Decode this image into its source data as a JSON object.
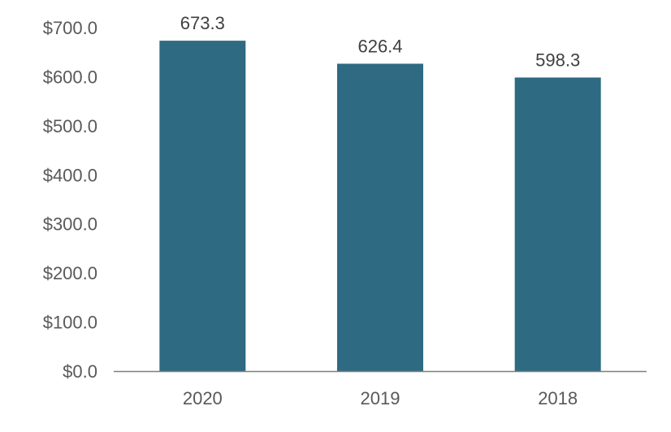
{
  "chart_data": {
    "type": "bar",
    "categories": [
      "2020",
      "2019",
      "2018"
    ],
    "values": [
      673.3,
      626.4,
      598.3
    ],
    "data_labels": [
      "673.3",
      "626.4",
      "598.3"
    ],
    "y_ticks": [
      {
        "value": 0,
        "label": "$0.0"
      },
      {
        "value": 100,
        "label": "$100.0"
      },
      {
        "value": 200,
        "label": "$200.0"
      },
      {
        "value": 300,
        "label": "$300.0"
      },
      {
        "value": 400,
        "label": "$400.0"
      },
      {
        "value": 500,
        "label": "$500.0"
      },
      {
        "value": 600,
        "label": "$600.0"
      },
      {
        "value": 700,
        "label": "$700.0"
      }
    ],
    "ylim": [
      0,
      700
    ],
    "grid": false,
    "legend": "none",
    "title": "",
    "xlabel": "",
    "ylabel": ""
  },
  "colors": {
    "bar": "#2e6a82",
    "axis": "#7f7f7f"
  }
}
